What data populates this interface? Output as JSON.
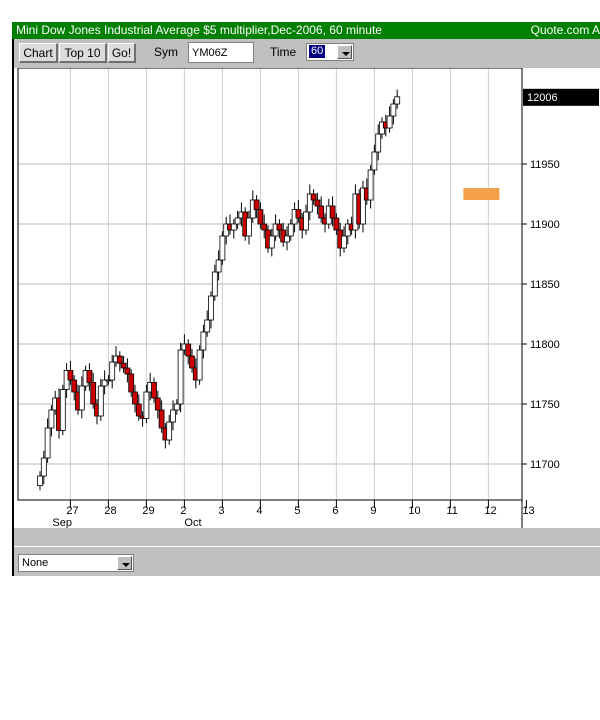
{
  "window": {
    "title": "Mini Dow Jones Industrial Average $5 multiplier,Dec-2006, 60 minute",
    "provider": "Quote.com  A"
  },
  "toolbar": {
    "chart_label": "Chart",
    "top10_label": "Top 10",
    "go_label": "Go!",
    "sym_label": "Sym",
    "sym_value": "YM06Z",
    "time_label": "Time",
    "time_value": "60"
  },
  "footer": {
    "study_select": "None"
  },
  "colors": {
    "title_bar": "#008000",
    "down_candle": "#cc0000",
    "up_candle": "#ffffff",
    "marker": "#f5a04a",
    "last_price_bg": "#000000"
  },
  "chart_data": {
    "type": "candlestick",
    "ylim": [
      11665,
      12020
    ],
    "yticks": [
      11700,
      11750,
      11800,
      11850,
      11900,
      11950
    ],
    "last_price": "12006",
    "xticks": [
      {
        "label": "27",
        "sub": "Sep",
        "index": 8
      },
      {
        "label": "28",
        "sub": "",
        "index": 18
      },
      {
        "label": "29",
        "sub": "",
        "index": 28
      },
      {
        "label": "2",
        "sub": "Oct",
        "index": 38
      },
      {
        "label": "3",
        "sub": "",
        "index": 48
      },
      {
        "label": "4",
        "sub": "",
        "index": 58
      },
      {
        "label": "5",
        "sub": "",
        "index": 68
      },
      {
        "label": "6",
        "sub": "",
        "index": 78
      },
      {
        "label": "9",
        "sub": "",
        "index": 88
      },
      {
        "label": "10",
        "sub": "",
        "index": 98
      },
      {
        "label": "11",
        "sub": "",
        "index": 108
      },
      {
        "label": "12",
        "sub": "",
        "index": 118
      },
      {
        "label": "13",
        "sub": "",
        "index": 128
      }
    ],
    "marker": {
      "index": 113,
      "low": 11920,
      "high": 11930
    },
    "closes": [
      11690,
      11705,
      11730,
      11745,
      11755,
      11728,
      11762,
      11778,
      11770,
      11760,
      11745,
      11765,
      11778,
      11768,
      11750,
      11740,
      11765,
      11770,
      11770,
      11785,
      11790,
      11784,
      11780,
      11775,
      11760,
      11750,
      11740,
      11738,
      11760,
      11768,
      11755,
      11745,
      11730,
      11720,
      11735,
      11745,
      11750,
      11795,
      11800,
      11790,
      11780,
      11770,
      11795,
      11810,
      11820,
      11840,
      11860,
      11870,
      11890,
      11900,
      11895,
      11900,
      11905,
      11910,
      11890,
      11905,
      11920,
      11912,
      11900,
      11895,
      11880,
      11890,
      11900,
      11895,
      11885,
      11890,
      11900,
      11912,
      11905,
      11895,
      11910,
      11925,
      11920,
      11915,
      11905,
      11900,
      11915,
      11905,
      11895,
      11880,
      11890,
      11900,
      11895,
      11925,
      11900,
      11930,
      11920,
      11945,
      11960,
      11975,
      11985,
      11980,
      11990,
      12000,
      12006
    ]
  }
}
